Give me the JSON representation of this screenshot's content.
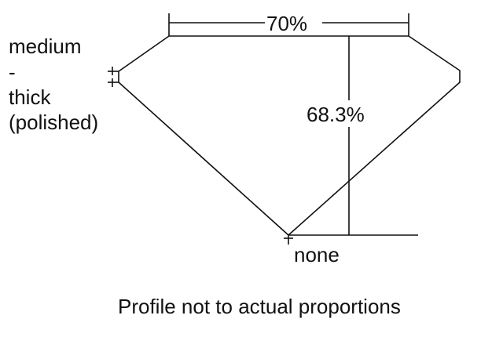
{
  "diagram": {
    "table_percentage": "70%",
    "total_depth_percentage": "68.3%",
    "girdle_label_lines": [
      "medium",
      "-",
      "thick",
      "(polished)"
    ],
    "culet_label": "none",
    "caption": "Profile not to actual proportions"
  },
  "colors": {
    "line": "#111111",
    "background": "#ffffff"
  }
}
